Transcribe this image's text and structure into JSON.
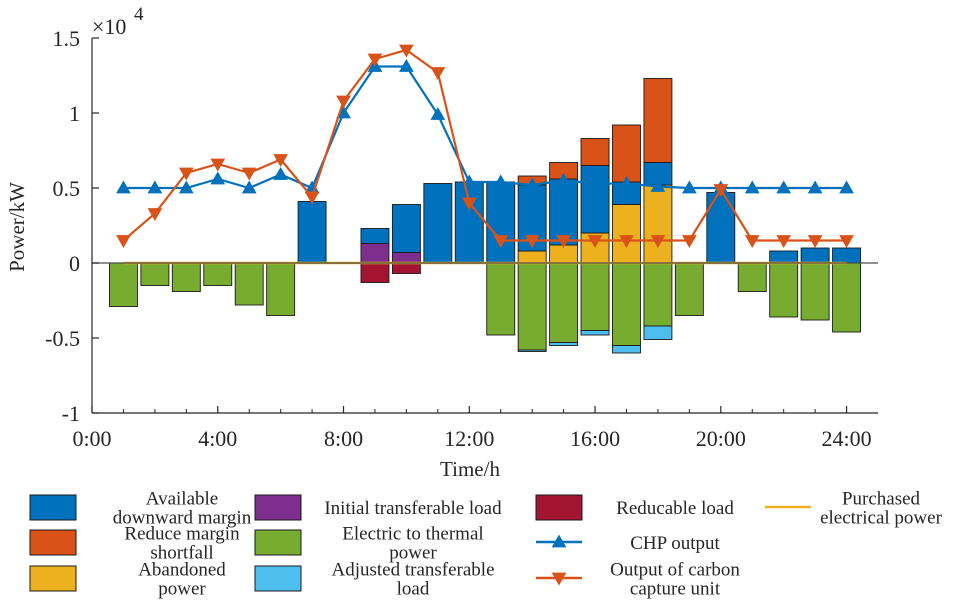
{
  "chart_data": {
    "type": "bar",
    "xlabel": "Time/h",
    "ylabel": "Power/kW",
    "exponent": {
      "base": "×10",
      "power": "4"
    },
    "xlim": [
      0,
      25
    ],
    "ylim": [
      -1,
      1.5
    ],
    "yticks": [
      -1,
      -0.5,
      0,
      0.5,
      1,
      1.5
    ],
    "ytick_labels": [
      "-1",
      "-0.5",
      "0",
      "0.5",
      "1",
      "1.5"
    ],
    "xticks": [
      0,
      4,
      8,
      12,
      16,
      20,
      24
    ],
    "xtick_labels": [
      "0:00",
      "4:00",
      "8:00",
      "12:00",
      "16:00",
      "20:00",
      "24:00"
    ],
    "x": [
      1,
      2,
      3,
      4,
      5,
      6,
      7,
      8,
      9,
      10,
      11,
      12,
      13,
      14,
      15,
      16,
      17,
      18,
      19,
      20,
      21,
      22,
      23,
      24
    ],
    "bars_positive": [
      {
        "name": "Initial transferable load",
        "color": "#7E2F8E",
        "values": [
          0,
          0,
          0,
          0,
          0,
          0,
          0,
          0,
          0.13,
          0.07,
          0,
          0,
          0,
          0,
          0,
          0,
          0,
          0,
          0,
          0,
          0,
          0,
          0,
          0
        ]
      },
      {
        "name": "Abandoned power",
        "color": "#EDB120",
        "values": [
          0,
          0,
          0,
          0,
          0,
          0,
          0,
          0,
          0,
          0,
          0,
          0,
          0,
          0.08,
          0.12,
          0.2,
          0.39,
          0.52,
          0,
          0,
          0,
          0,
          0,
          0
        ]
      },
      {
        "name": "Available downward margin",
        "color": "#0072BD",
        "values": [
          0,
          0,
          0,
          0,
          0,
          0,
          0.41,
          0,
          0.1,
          0.32,
          0.53,
          0.54,
          0.54,
          0.44,
          0.44,
          0.45,
          0.15,
          0.15,
          0,
          0.47,
          0,
          0.08,
          0.1,
          0.1
        ]
      },
      {
        "name": "Reduce margin shortfall",
        "color": "#D95319",
        "values": [
          0,
          0,
          0,
          0,
          0,
          0,
          0,
          0,
          0,
          0,
          0,
          0,
          0,
          0.06,
          0.11,
          0.18,
          0.38,
          0.56,
          0,
          0,
          0,
          0,
          0,
          0
        ]
      }
    ],
    "bars_negative": [
      {
        "name": "Reducable load",
        "color": "#A2142F",
        "values": [
          0,
          0,
          0,
          0,
          0,
          0,
          0,
          0,
          -0.13,
          -0.07,
          0,
          0,
          0,
          0,
          0,
          0,
          0,
          0,
          0,
          0,
          0,
          0,
          0,
          0
        ]
      },
      {
        "name": "Electric to thermal power",
        "color": "#77AC30",
        "values": [
          -0.29,
          -0.15,
          -0.19,
          -0.15,
          -0.28,
          -0.35,
          0,
          0,
          0,
          0,
          0,
          0,
          -0.48,
          -0.58,
          -0.53,
          -0.45,
          -0.55,
          -0.42,
          -0.35,
          0,
          -0.19,
          -0.36,
          -0.38,
          -0.46
        ]
      },
      {
        "name": "Adjusted transferable load",
        "color": "#4DBEEE",
        "values": [
          0,
          0,
          0,
          0,
          0,
          0,
          0,
          0,
          0,
          0,
          0,
          0,
          0,
          -0.01,
          -0.02,
          -0.03,
          -0.05,
          -0.09,
          0,
          0,
          0,
          0,
          0,
          0
        ]
      }
    ],
    "series": [
      {
        "name": "CHP output",
        "color": "#0072BD",
        "marker": "triangle-up",
        "values": [
          0.5,
          0.5,
          0.5,
          0.56,
          0.5,
          0.59,
          0.5,
          1.0,
          1.31,
          1.31,
          0.99,
          0.54,
          0.54,
          0.52,
          0.55,
          0.53,
          0.53,
          0.51,
          0.5,
          0.5,
          0.5,
          0.5,
          0.5,
          0.5
        ]
      },
      {
        "name": "Output of carbon capture unit",
        "color": "#D95319",
        "marker": "triangle-down",
        "values": [
          0.15,
          0.33,
          0.6,
          0.66,
          0.6,
          0.69,
          0.44,
          1.08,
          1.36,
          1.42,
          1.27,
          0.4,
          0.15,
          0.15,
          0.15,
          0.15,
          0.15,
          0.15,
          0.15,
          0.49,
          0.15,
          0.15,
          0.15,
          0.15
        ]
      },
      {
        "name": "Purchased electrical power",
        "color": "#EDB120",
        "marker": "none",
        "values": [
          0,
          0,
          0,
          0,
          0,
          0,
          0,
          0,
          0,
          0,
          0,
          0,
          0,
          0,
          0,
          0,
          0,
          0,
          0,
          0,
          0,
          0,
          0,
          0
        ]
      }
    ],
    "legend": {
      "placement": "bottom",
      "items": [
        {
          "label_lines": [
            "Available",
            "downward margin"
          ],
          "kind": "box",
          "color": "#0072BD"
        },
        {
          "label_lines": [
            "Reduce margin",
            "shortfall"
          ],
          "kind": "box",
          "color": "#D95319"
        },
        {
          "label_lines": [
            "Abandoned",
            "power"
          ],
          "kind": "box",
          "color": "#EDB120"
        },
        {
          "label_lines": [
            "Initial transferable load"
          ],
          "kind": "box",
          "color": "#7E2F8E"
        },
        {
          "label_lines": [
            "Electric to thermal",
            "power"
          ],
          "kind": "box",
          "color": "#77AC30"
        },
        {
          "label_lines": [
            "Adjusted transferable",
            "load"
          ],
          "kind": "box",
          "color": "#4DBEEE"
        },
        {
          "label_lines": [
            "Reducable load"
          ],
          "kind": "box",
          "color": "#A2142F"
        },
        {
          "label_lines": [
            "CHP output"
          ],
          "kind": "line-up",
          "color": "#0072BD"
        },
        {
          "label_lines": [
            "Output of carbon",
            "capture unit"
          ],
          "kind": "line-down",
          "color": "#D95319"
        },
        {
          "label_lines": [
            "Purchased",
            "electrical power"
          ],
          "kind": "line",
          "color": "#EDB120"
        }
      ]
    }
  }
}
